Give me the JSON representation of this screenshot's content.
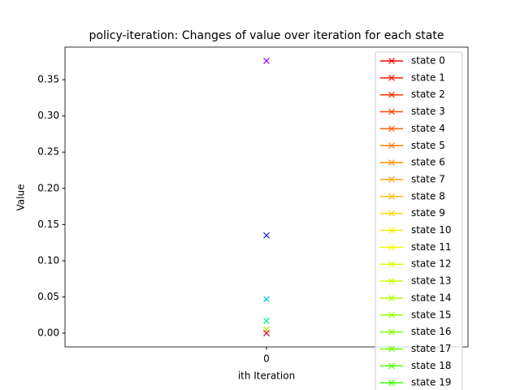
{
  "chart_data": {
    "type": "line",
    "title": "policy-iteration: Changes of value over iteration for each state",
    "x_label": "ith Iteration",
    "y_label": "Value",
    "x": [
      0
    ],
    "xlim": [
      -0.055,
      0.055
    ],
    "xticks": [
      0
    ],
    "ylim": [
      -0.019,
      0.395
    ],
    "yticks": [
      {
        "value": 0,
        "label": "0.00"
      },
      0.05,
      {
        "value": 0.1,
        "label": "0.10"
      },
      0.15,
      {
        "value": 0.2,
        "label": "0.20"
      },
      0.25,
      {
        "value": 0.3,
        "label": "0.30"
      },
      0.35
    ],
    "marker": "x",
    "legend_loc": "upper right",
    "series": [
      {
        "name": "state 0",
        "color": "#ff0000",
        "values": [
          0
        ]
      },
      {
        "name": "state 1",
        "color": "#ff1800",
        "values": [
          0
        ]
      },
      {
        "name": "state 2",
        "color": "#ff3000",
        "values": [
          0
        ]
      },
      {
        "name": "state 3",
        "color": "#ff4800",
        "values": [
          0
        ]
      },
      {
        "name": "state 4",
        "color": "#ff6000",
        "values": [
          0
        ]
      },
      {
        "name": "state 5",
        "color": "#ff7800",
        "values": [
          0
        ]
      },
      {
        "name": "state 6",
        "color": "#ff8f00",
        "values": [
          0
        ]
      },
      {
        "name": "state 7",
        "color": "#ffa700",
        "values": [
          0
        ]
      },
      {
        "name": "state 8",
        "color": "#ffbf00",
        "values": [
          0
        ]
      },
      {
        "name": "state 9",
        "color": "#ffd700",
        "values": [
          0
        ]
      },
      {
        "name": "state 10",
        "color": "#ffef00",
        "values": [
          0
        ]
      },
      {
        "name": "state 11",
        "color": "#f7ff00",
        "values": [
          0
        ]
      },
      {
        "name": "state 12",
        "color": "#dfff00",
        "values": [
          0
        ]
      },
      {
        "name": "state 13",
        "color": "#c7ff00",
        "values": [
          0
        ]
      },
      {
        "name": "state 14",
        "color": "#afff00",
        "values": [
          0
        ]
      },
      {
        "name": "state 15",
        "color": "#97ff00",
        "values": [
          0
        ]
      },
      {
        "name": "state 16",
        "color": "#80ff00",
        "values": [
          0
        ]
      },
      {
        "name": "state 17",
        "color": "#68ff00",
        "values": [
          0
        ]
      },
      {
        "name": "state 18",
        "color": "#50ff00",
        "values": [
          0
        ]
      },
      {
        "name": "state 19",
        "color": "#38ff00",
        "values": [
          0
        ]
      },
      {
        "color": "#c0e000",
        "values": [
          0.005
        ]
      },
      {
        "color": "#00e8a0",
        "values": [
          0.017
        ]
      },
      {
        "color": "#00d0e8",
        "values": [
          0.047
        ]
      },
      {
        "color": "#0018d8",
        "values": [
          0.135
        ]
      },
      {
        "color": "#9000f0",
        "values": [
          0.376
        ]
      },
      {
        "color": "#ff0090",
        "values": [
          0
        ]
      }
    ]
  }
}
